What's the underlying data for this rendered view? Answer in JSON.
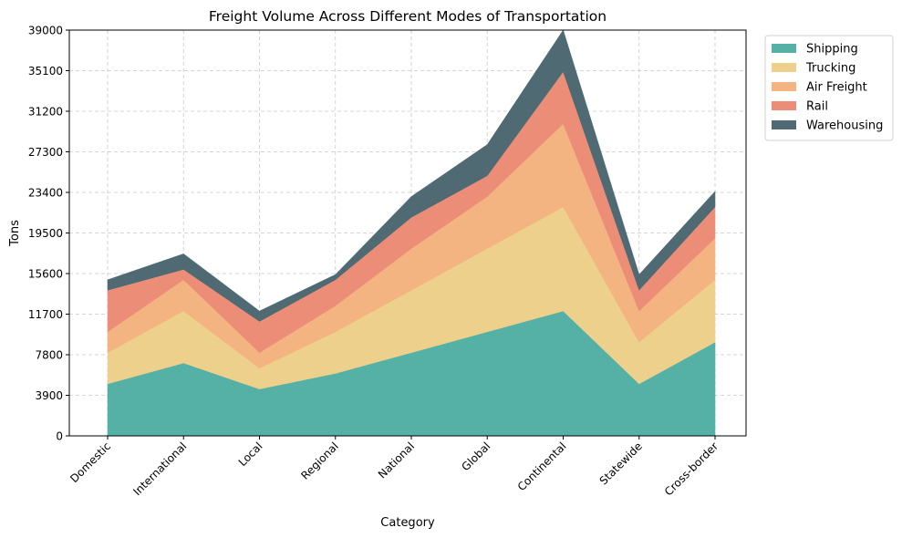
{
  "chart_data": {
    "type": "area",
    "stacked": true,
    "title": "Freight Volume Across Different Modes of Transportation",
    "xlabel": "Category",
    "ylabel": "Tons",
    "categories": [
      "Domestic",
      "International",
      "Local",
      "Regional",
      "National",
      "Global",
      "Continental",
      "Statewide",
      "Cross-border"
    ],
    "ylim": [
      0,
      39000
    ],
    "yticks": [
      0,
      3900,
      7800,
      11700,
      15600,
      19500,
      23400,
      27300,
      31200,
      35100,
      39000
    ],
    "grid": true,
    "legend_position": "outside-top-right",
    "series": [
      {
        "name": "Shipping",
        "color": "#55b0a6",
        "values": [
          5000,
          7000,
          4500,
          6000,
          8000,
          10000,
          12000,
          5000,
          9000
        ]
      },
      {
        "name": "Trucking",
        "color": "#edd08b",
        "values": [
          3000,
          5000,
          2000,
          4000,
          6000,
          8000,
          10000,
          4000,
          6000
        ]
      },
      {
        "name": "Air Freight",
        "color": "#f4b482",
        "values": [
          2000,
          3000,
          1500,
          2500,
          4000,
          5000,
          8000,
          3000,
          4000
        ]
      },
      {
        "name": "Rail",
        "color": "#ec8e77",
        "values": [
          4000,
          1000,
          3000,
          2500,
          3000,
          2000,
          5000,
          2000,
          3000
        ]
      },
      {
        "name": "Warehousing",
        "color": "#4f6a73",
        "values": [
          1000,
          1500,
          1000,
          500,
          2000,
          3000,
          4000,
          1500,
          1500
        ]
      }
    ]
  }
}
